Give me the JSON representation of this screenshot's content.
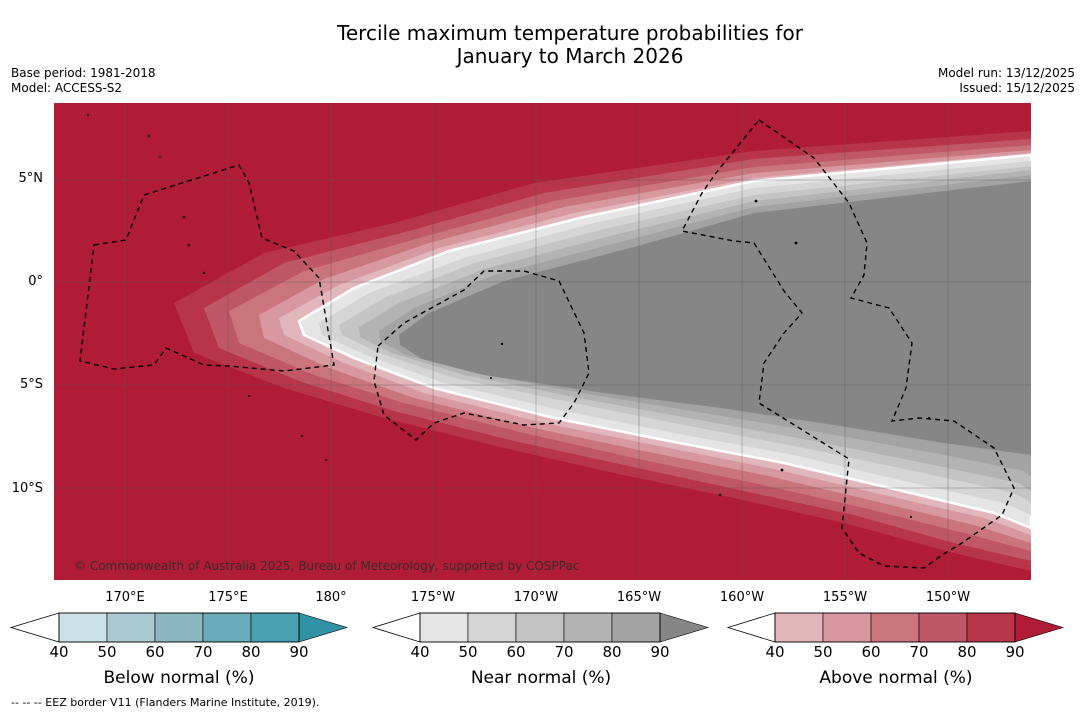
{
  "title": {
    "line1": "Tercile maximum temperature probabilities for",
    "line2": "January to March 2026"
  },
  "meta_left": {
    "base_period": "Base period: 1981-2018",
    "model": "Model: ACCESS-S2"
  },
  "meta_right": {
    "model_run": "Model run: 13/12/2025",
    "issued": "Issued: 15/12/2025"
  },
  "map": {
    "lat_labels": [
      "5°N",
      "0°",
      "5°S",
      "10°S"
    ],
    "lon_labels": [
      "170°E",
      "175°E",
      "180°",
      "175°W",
      "170°W",
      "165°W",
      "160°W",
      "155°W",
      "150°W"
    ],
    "copyright": "© Commonwealth of Australia 2025, Bureau of Meteorology, supported by COSPPac"
  },
  "colorbars": [
    {
      "label": "Below normal (%)",
      "ticks": [
        "40",
        "50",
        "60",
        "70",
        "80",
        "90"
      ],
      "colors": [
        "#c9e1e7",
        "#a9c8cf",
        "#8ab5c1",
        "#6aabb9",
        "#49a0b1",
        "#2f92a6"
      ]
    },
    {
      "label": "Near normal (%)",
      "ticks": [
        "40",
        "50",
        "60",
        "70",
        "80",
        "90"
      ],
      "colors": [
        "#e5e5e5",
        "#d5d5d5",
        "#c5c5c5",
        "#b3b3b3",
        "#a3a3a3",
        "#868686"
      ]
    },
    {
      "label": "Above normal (%)",
      "ticks": [
        "40",
        "50",
        "60",
        "70",
        "80",
        "90"
      ],
      "colors": [
        "#e1b7bc",
        "#d7989f",
        "#ca747c",
        "#bf5766",
        "#b83549",
        "#b01c36"
      ]
    }
  ],
  "footer": "-- -- -- EEZ border V11 (Flanders Marine Institute, 2019).",
  "colors": {
    "above": [
      "#e1b7bc",
      "#d7989f",
      "#ca747c",
      "#bf5766",
      "#b83549",
      "#b01c36"
    ],
    "near": [
      "#e5e5e5",
      "#d5d5d5",
      "#c5c5c5",
      "#b3b3b3",
      "#a3a3a3",
      "#868686"
    ]
  }
}
